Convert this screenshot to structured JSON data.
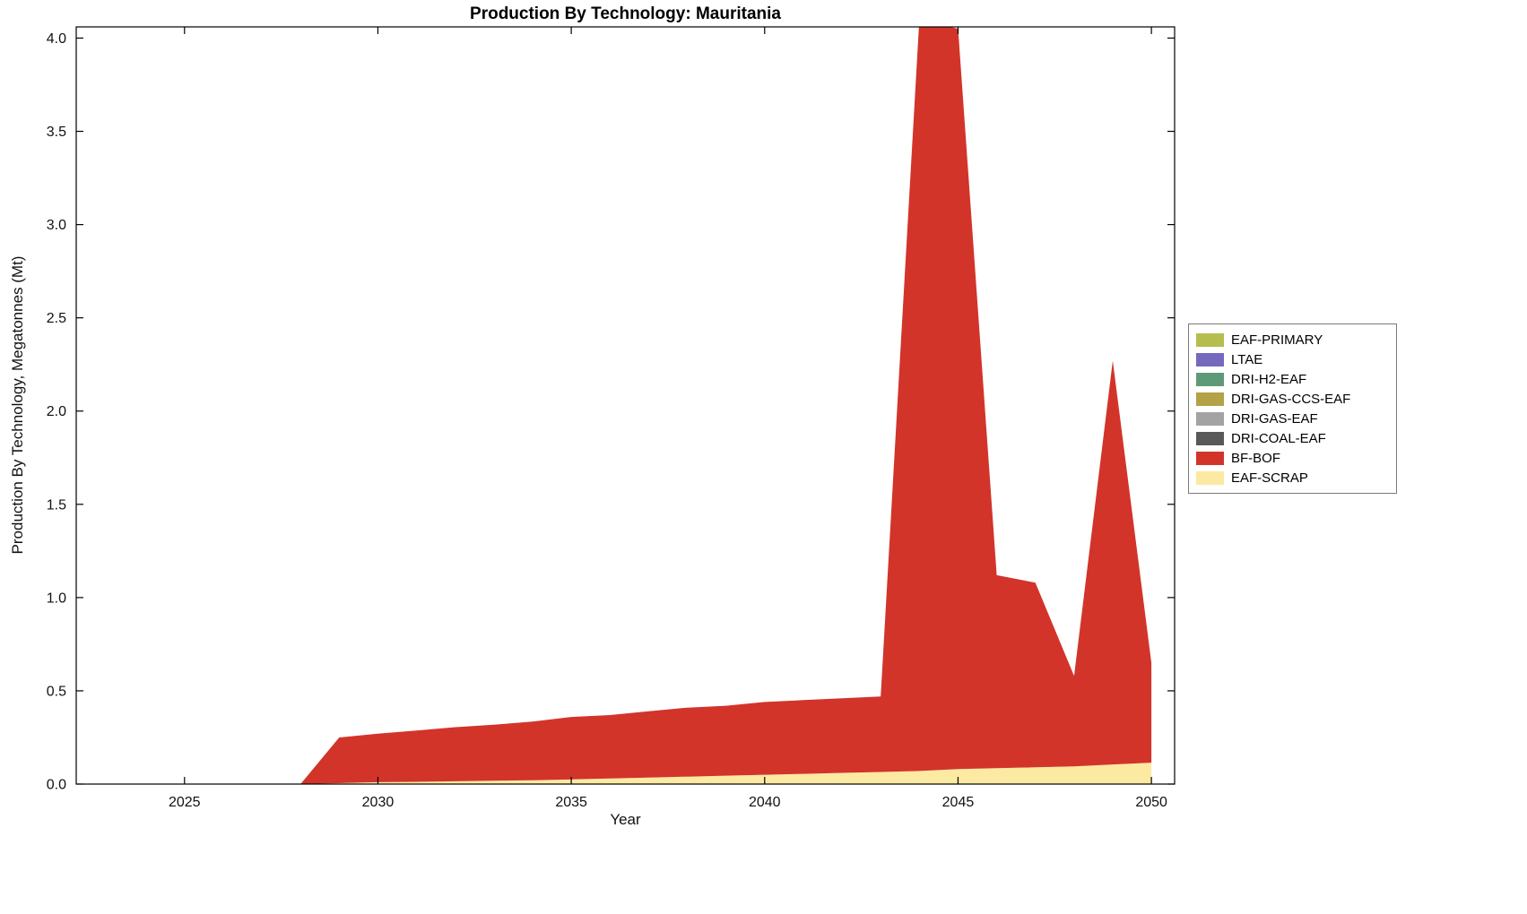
{
  "chart_data": {
    "type": "area",
    "stacked": true,
    "title": "Production By Technology: Mauritania",
    "xlabel": "Year",
    "ylabel": "Production By Technology, Megatonnes (Mt)",
    "grid": false,
    "legend_position": "right-outside",
    "xlim": [
      2022.2,
      2050.6
    ],
    "ylim": [
      0,
      4.06
    ],
    "xticks": [
      2025,
      2030,
      2035,
      2040,
      2045,
      2050
    ],
    "xtick_labels": [
      "2025",
      "2030",
      "2035",
      "2040",
      "2045",
      "2050"
    ],
    "yticks": [
      0.0,
      0.5,
      1.0,
      1.5,
      2.0,
      2.5,
      3.0,
      3.5,
      4.0
    ],
    "ytick_labels": [
      "0.0",
      "0.5",
      "1.0",
      "1.5",
      "2.0",
      "2.5",
      "3.0",
      "3.5",
      "4.0"
    ],
    "x": [
      2022,
      2023,
      2024,
      2025,
      2026,
      2027,
      2028,
      2029,
      2030,
      2031,
      2032,
      2033,
      2034,
      2035,
      2036,
      2037,
      2038,
      2039,
      2040,
      2041,
      2042,
      2043,
      2044,
      2045,
      2046,
      2047,
      2048,
      2049,
      2050
    ],
    "stack_order": [
      "EAF-SCRAP",
      "BF-BOF",
      "DRI-COAL-EAF",
      "DRI-GAS-EAF",
      "DRI-GAS-CCS-EAF",
      "DRI-H2-EAF",
      "LTAE",
      "EAF-PRIMARY"
    ],
    "series": [
      {
        "name": "EAF-PRIMARY",
        "color": "#b5bd4f",
        "values": [
          0,
          0,
          0,
          0,
          0,
          0,
          0,
          0,
          0,
          0,
          0,
          0,
          0,
          0,
          0,
          0,
          0,
          0,
          0,
          0,
          0,
          0,
          0,
          0,
          0,
          0,
          0,
          0,
          0
        ]
      },
      {
        "name": "LTAE",
        "color": "#7569be",
        "values": [
          0,
          0,
          0,
          0,
          0,
          0,
          0,
          0,
          0,
          0,
          0,
          0,
          0,
          0,
          0,
          0,
          0,
          0,
          0,
          0,
          0,
          0,
          0,
          0,
          0,
          0,
          0,
          0,
          0
        ]
      },
      {
        "name": "DRI-H2-EAF",
        "color": "#5f9a78",
        "values": [
          0,
          0,
          0,
          0,
          0,
          0,
          0,
          0,
          0,
          0,
          0,
          0,
          0,
          0,
          0,
          0,
          0,
          0,
          0,
          0,
          0,
          0,
          0,
          0,
          0,
          0,
          0,
          0,
          0
        ]
      },
      {
        "name": "DRI-GAS-CCS-EAF",
        "color": "#b3a246",
        "values": [
          0,
          0,
          0,
          0,
          0,
          0,
          0,
          0,
          0,
          0,
          0,
          0,
          0,
          0,
          0,
          0,
          0,
          0,
          0,
          0,
          0,
          0,
          0,
          0,
          0,
          0,
          0,
          0,
          0
        ]
      },
      {
        "name": "DRI-GAS-EAF",
        "color": "#a3a3a3",
        "values": [
          0,
          0,
          0,
          0,
          0,
          0,
          0,
          0,
          0,
          0,
          0,
          0,
          0,
          0,
          0,
          0,
          0,
          0,
          0,
          0,
          0,
          0,
          0,
          0,
          0,
          0,
          0,
          0,
          0
        ]
      },
      {
        "name": "DRI-COAL-EAF",
        "color": "#595959",
        "values": [
          0,
          0,
          0,
          0,
          0,
          0,
          0,
          0,
          0,
          0,
          0,
          0,
          0,
          0,
          0,
          0,
          0,
          0,
          0,
          0,
          0,
          0,
          0,
          0,
          0,
          0,
          0,
          0,
          0
        ]
      },
      {
        "name": "BF-BOF",
        "color": "#d2342a",
        "values": [
          0,
          0,
          0,
          0,
          0,
          0,
          0,
          0.245,
          0.26,
          0.275,
          0.29,
          0.3,
          0.315,
          0.335,
          0.34,
          0.355,
          0.37,
          0.375,
          0.39,
          0.395,
          0.4,
          0.405,
          4.03,
          3.97,
          1.035,
          0.99,
          0.485,
          2.165,
          0.535
        ]
      },
      {
        "name": "EAF-SCRAP",
        "color": "#fce9a2",
        "values": [
          0,
          0,
          0,
          0,
          0,
          0,
          0,
          0.005,
          0.01,
          0.012,
          0.015,
          0.018,
          0.02,
          0.025,
          0.03,
          0.035,
          0.04,
          0.045,
          0.05,
          0.055,
          0.06,
          0.065,
          0.07,
          0.08,
          0.085,
          0.09,
          0.095,
          0.105,
          0.115
        ]
      }
    ]
  }
}
